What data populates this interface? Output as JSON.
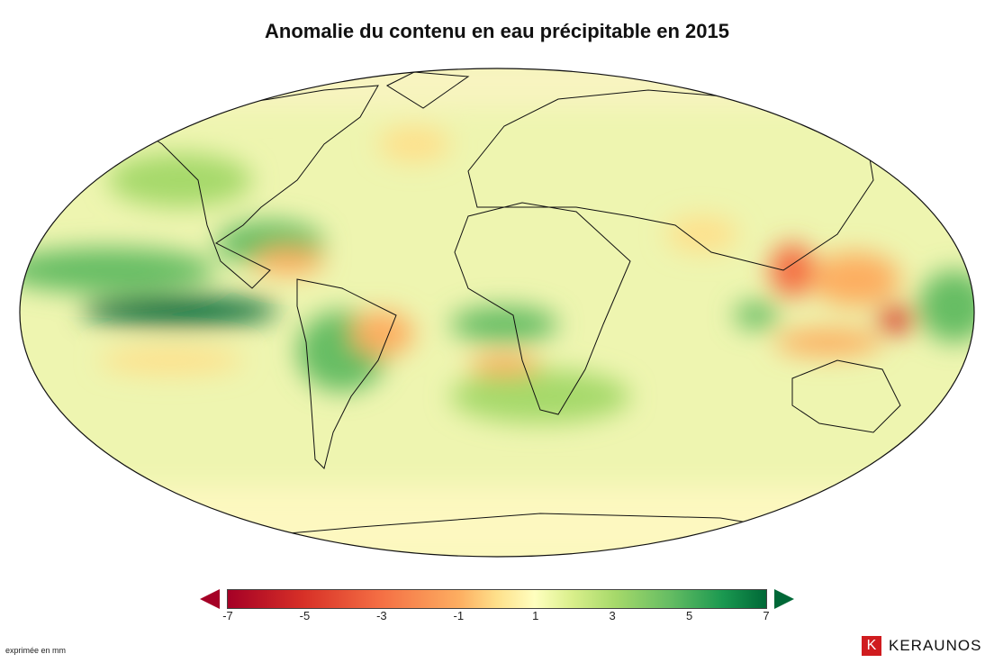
{
  "title": "Anomalie du contenu en eau précipitable en 2015",
  "colorbar": {
    "min": -7,
    "max": 7,
    "ticks": [
      "-7",
      "-5",
      "-3",
      "-1",
      "1",
      "3",
      "5",
      "7"
    ],
    "colors": [
      "#a50026",
      "#d73027",
      "#f46d43",
      "#fdae61",
      "#ffffbf",
      "#a6d96a",
      "#1a9850",
      "#006837"
    ],
    "extend": "both"
  },
  "unit_note": "exprimée en mm",
  "logo": {
    "text": "KERAUNOS",
    "mark": "K"
  },
  "map": {
    "projection": "Robinson",
    "region": "world",
    "variable": "precipitable water anomaly"
  }
}
